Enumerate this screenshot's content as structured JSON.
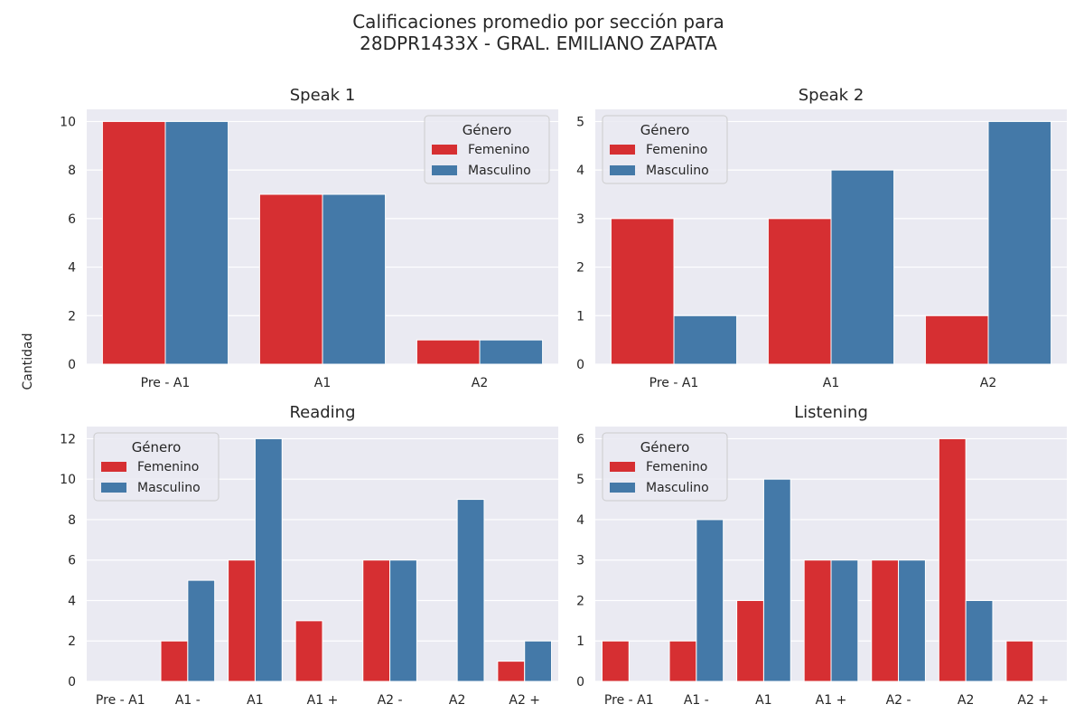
{
  "title_line1": "Calificaciones promedio por sección para",
  "title_line2": "28DPR1433X - GRAL. EMILIANO ZAPATA",
  "shared_ylabel": "Cantidad",
  "colors": {
    "Femenino": "#d62f32",
    "Masculino": "#4479a8",
    "plot_bg": "#eaeaf2",
    "grid": "#ffffff"
  },
  "chart_data": [
    {
      "type": "bar",
      "title": "Speak 1",
      "categories": [
        "Pre - A1",
        "A1",
        "A2"
      ],
      "series": [
        {
          "name": "Femenino",
          "values": [
            10,
            7,
            1
          ]
        },
        {
          "name": "Masculino",
          "values": [
            10,
            7,
            1
          ]
        }
      ],
      "ylim": [
        0,
        10.5
      ],
      "yticks": [
        0,
        2,
        4,
        6,
        8,
        10
      ],
      "legend": {
        "title": "Género",
        "placement": "top-right"
      },
      "grid": true
    },
    {
      "type": "bar",
      "title": "Speak 2",
      "categories": [
        "Pre - A1",
        "A1",
        "A2"
      ],
      "series": [
        {
          "name": "Femenino",
          "values": [
            3,
            3,
            1
          ]
        },
        {
          "name": "Masculino",
          "values": [
            1,
            4,
            5
          ]
        }
      ],
      "ylim": [
        0,
        5.25
      ],
      "yticks": [
        0,
        1,
        2,
        3,
        4,
        5
      ],
      "legend": {
        "title": "Género",
        "placement": "top-left"
      },
      "grid": true
    },
    {
      "type": "bar",
      "title": "Reading",
      "categories": [
        "Pre - A1",
        "A1 -",
        "A1",
        "A1 +",
        "A2 -",
        "A2",
        "A2 +"
      ],
      "series": [
        {
          "name": "Femenino",
          "values": [
            0,
            2,
            6,
            3,
            6,
            0,
            1
          ]
        },
        {
          "name": "Masculino",
          "values": [
            0,
            5,
            12,
            0,
            6,
            9,
            2
          ]
        }
      ],
      "ylim": [
        0,
        12.6
      ],
      "yticks": [
        0,
        2,
        4,
        6,
        8,
        10,
        12
      ],
      "legend": {
        "title": "Género",
        "placement": "top-left"
      },
      "grid": true
    },
    {
      "type": "bar",
      "title": "Listening",
      "categories": [
        "Pre - A1",
        "A1 -",
        "A1",
        "A1 +",
        "A2 -",
        "A2",
        "A2 +"
      ],
      "series": [
        {
          "name": "Femenino",
          "values": [
            1,
            1,
            2,
            3,
            3,
            6,
            1
          ]
        },
        {
          "name": "Masculino",
          "values": [
            0,
            4,
            5,
            3,
            3,
            2,
            0
          ]
        }
      ],
      "ylim": [
        0,
        6.3
      ],
      "yticks": [
        0,
        1,
        2,
        3,
        4,
        5,
        6
      ],
      "legend": {
        "title": "Género",
        "placement": "top-left"
      },
      "grid": true
    }
  ]
}
